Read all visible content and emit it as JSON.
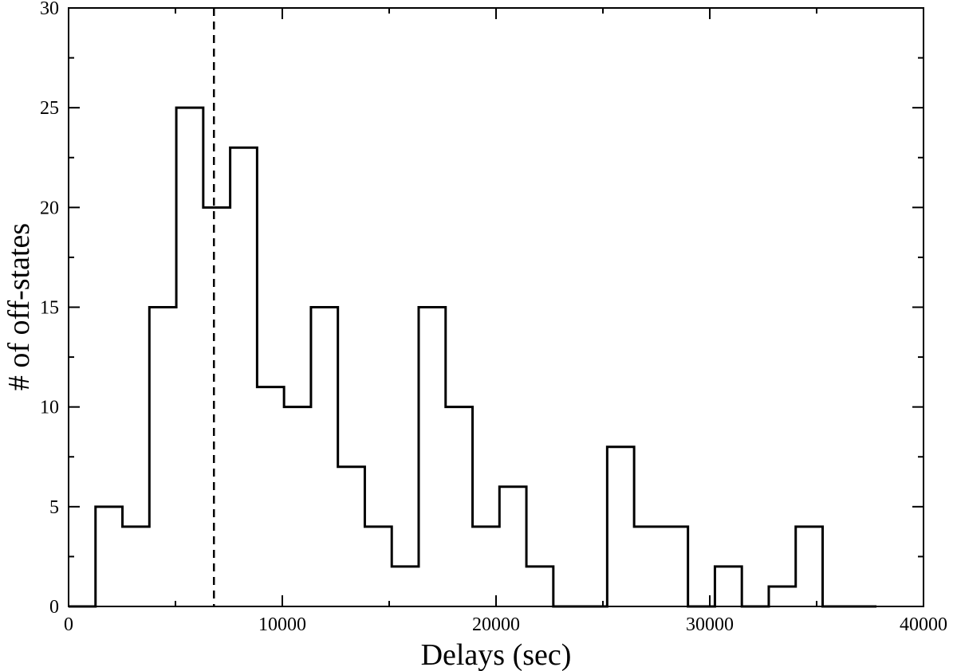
{
  "chart_data": {
    "type": "histogram",
    "title": "",
    "xlabel": "Delays (sec)",
    "ylabel": "# of off-states",
    "xlim": [
      0,
      40000
    ],
    "ylim": [
      0,
      30
    ],
    "xticks": [
      0,
      10000,
      20000,
      30000,
      40000
    ],
    "yticks": [
      0,
      5,
      10,
      15,
      20,
      25,
      30
    ],
    "grid": false,
    "bin_width": 1260,
    "bin_start": 0,
    "counts": [
      0,
      5,
      4,
      15,
      25,
      20,
      23,
      11,
      10,
      15,
      7,
      4,
      2,
      15,
      10,
      4,
      6,
      2,
      0,
      0,
      8,
      4,
      4,
      0,
      2,
      0,
      1,
      4,
      0,
      0
    ],
    "vertical_marker": {
      "x": 6800,
      "style": "dashed"
    },
    "line_color": "#000000"
  }
}
